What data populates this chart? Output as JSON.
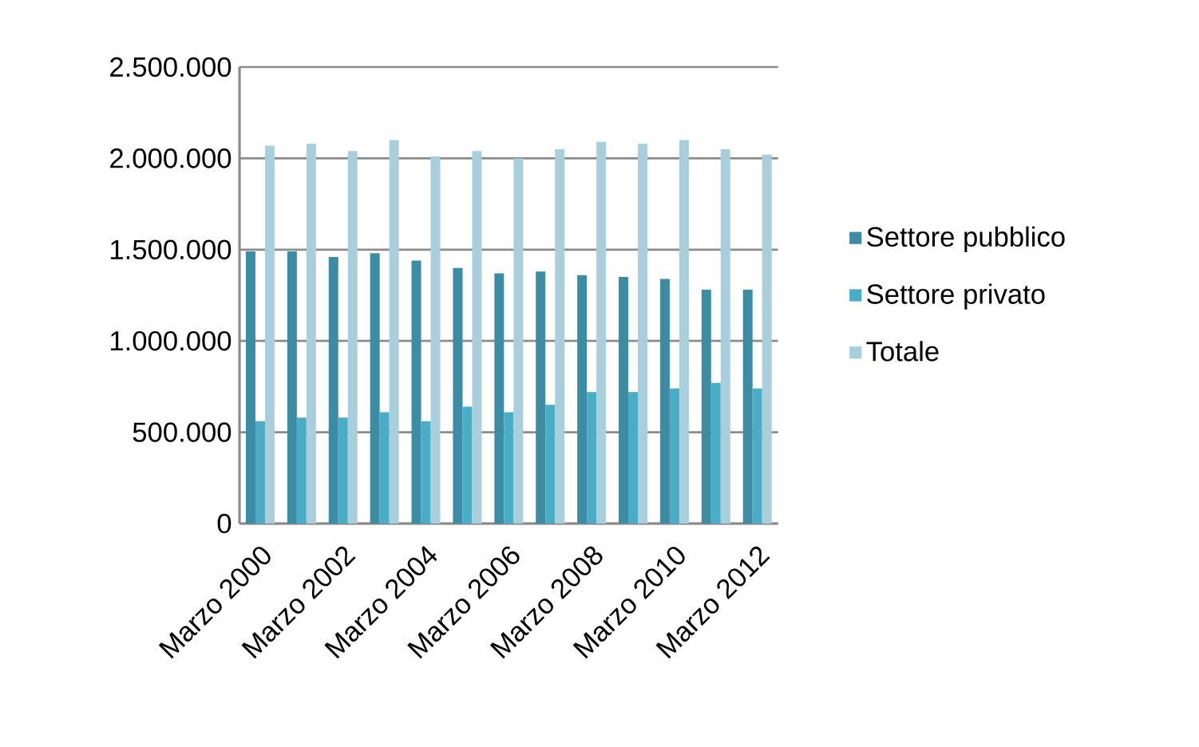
{
  "chart_data": {
    "type": "bar",
    "categories": [
      "Marzo 2000",
      null,
      "Marzo 2002",
      null,
      "Marzo 2004",
      null,
      "Marzo 2006",
      null,
      "Marzo 2008",
      null,
      "Marzo 2010",
      null,
      "Marzo 2012"
    ],
    "series": [
      {
        "name": "Settore pubblico",
        "color": "#3c8ca3",
        "values": [
          1490000,
          1490000,
          1460000,
          1480000,
          1440000,
          1400000,
          1370000,
          1380000,
          1360000,
          1350000,
          1340000,
          1280000,
          1280000
        ]
      },
      {
        "name": "Settore privato",
        "color": "#4bacc6",
        "values": [
          560000,
          580000,
          580000,
          610000,
          560000,
          640000,
          610000,
          650000,
          720000,
          720000,
          740000,
          770000,
          740000
        ]
      },
      {
        "name": "Totale",
        "color": "#a9cfdc",
        "values": [
          2070000,
          2080000,
          2040000,
          2100000,
          2010000,
          2040000,
          2000000,
          2050000,
          2090000,
          2080000,
          2100000,
          2050000,
          2020000
        ]
      }
    ],
    "ylim": [
      0,
      2500000
    ],
    "yticks": [
      0,
      {
        "value": 500000,
        "label": "500.000"
      },
      {
        "value": 1000000,
        "label": "1.000.000"
      },
      {
        "value": 1500000,
        "label": "1.500.000"
      },
      {
        "value": 2000000,
        "label": "2.000.000"
      },
      {
        "value": 2500000,
        "label": "2.500.000"
      }
    ],
    "grid": "y",
    "legend": "right"
  }
}
